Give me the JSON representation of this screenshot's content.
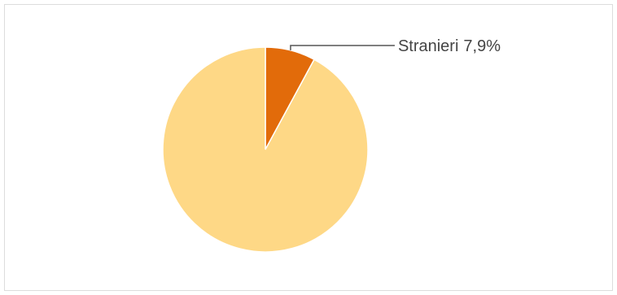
{
  "chart_data": {
    "type": "pie",
    "categories": [
      "Stranieri",
      null
    ],
    "values": [
      7.9,
      92.1
    ],
    "value_labels": [
      "7,9%",
      null
    ],
    "colors": [
      "#e26b0a",
      "#fed886"
    ]
  }
}
